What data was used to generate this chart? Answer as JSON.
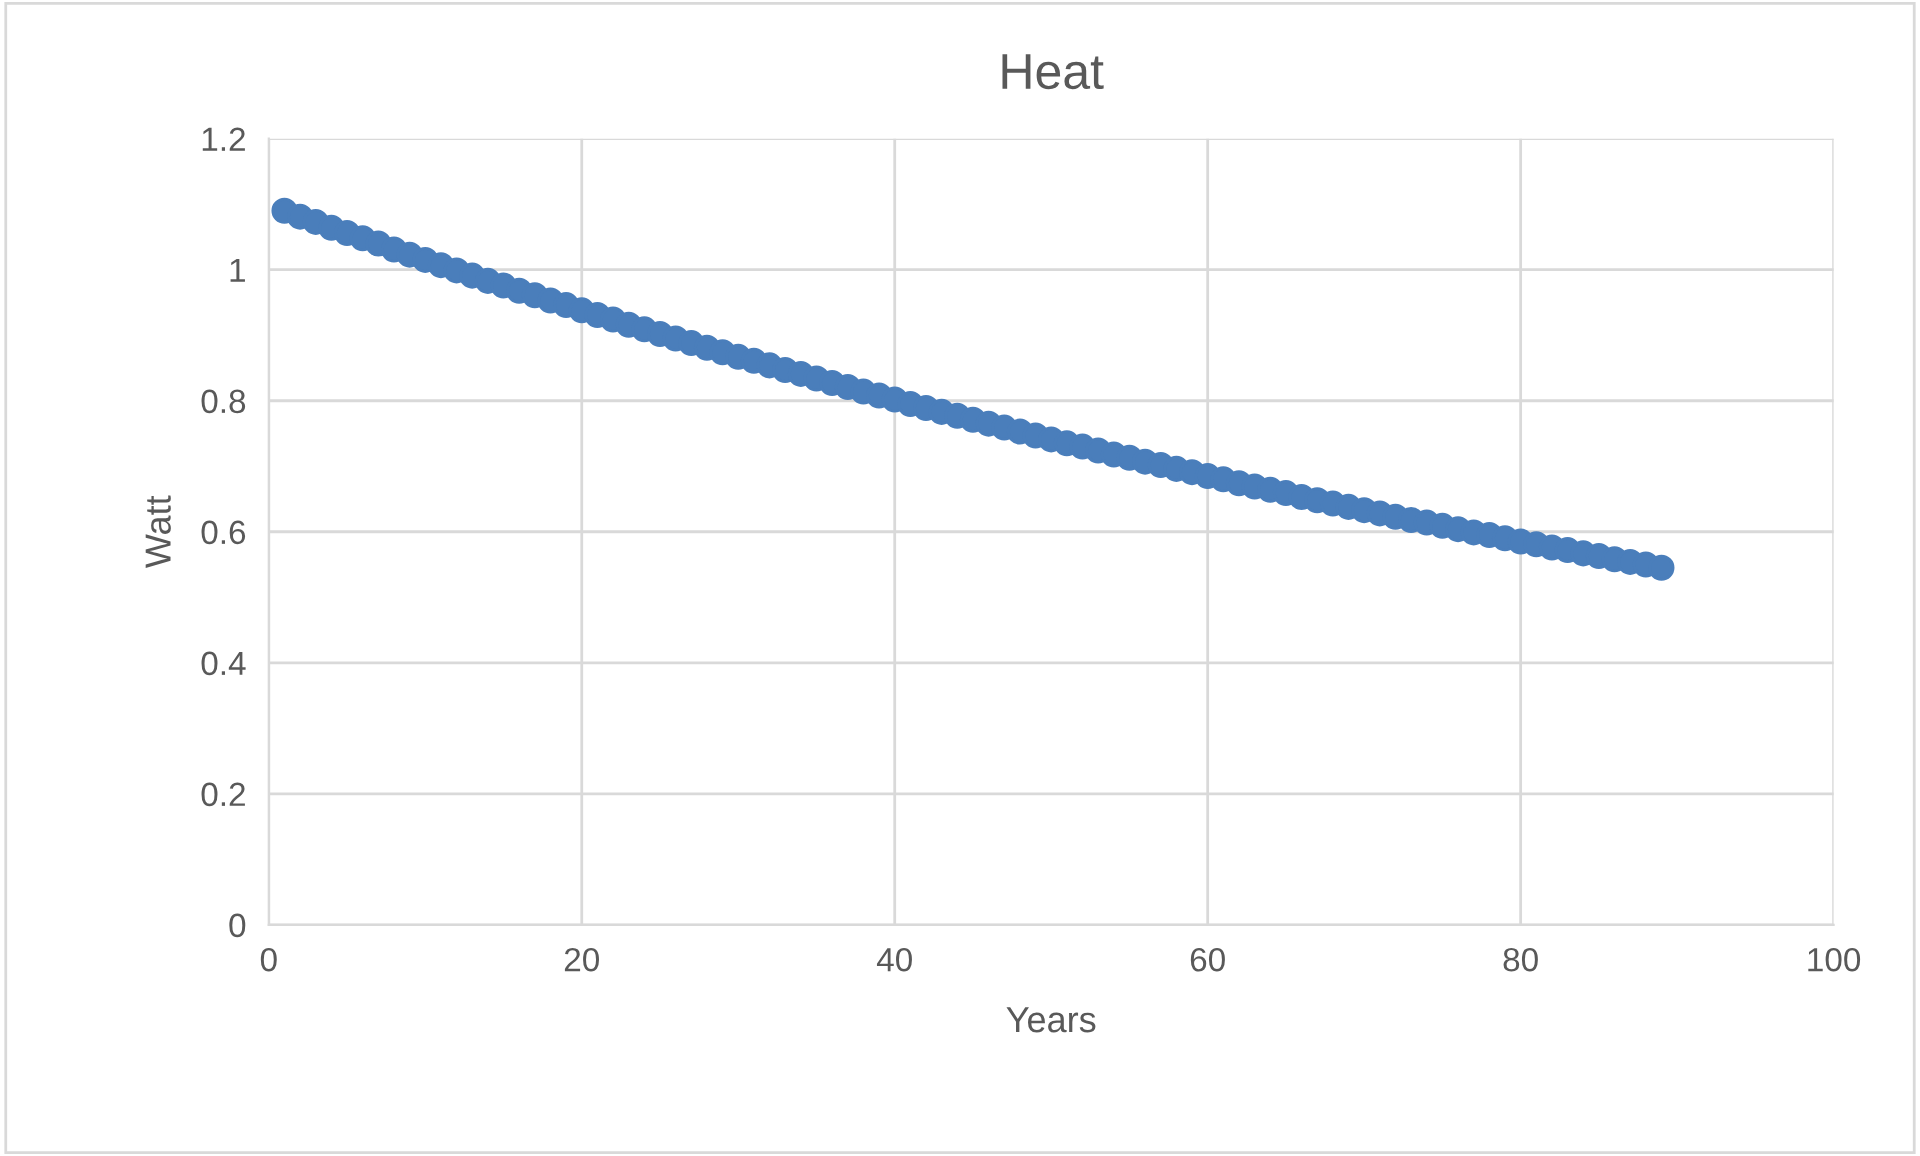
{
  "chart_data": {
    "type": "scatter",
    "title": "Heat",
    "xlabel": "Years",
    "ylabel": "Watt",
    "x": [
      1,
      2,
      3,
      4,
      5,
      6,
      7,
      8,
      9,
      10,
      11,
      12,
      13,
      14,
      15,
      16,
      17,
      18,
      19,
      20,
      21,
      22,
      23,
      24,
      25,
      26,
      27,
      28,
      29,
      30,
      31,
      32,
      33,
      34,
      35,
      36,
      37,
      38,
      39,
      40,
      41,
      42,
      43,
      44,
      45,
      46,
      47,
      48,
      49,
      50,
      51,
      52,
      53,
      54,
      55,
      56,
      57,
      58,
      59,
      60,
      61,
      62,
      63,
      64,
      65,
      66,
      67,
      68,
      69,
      70,
      71,
      72,
      73,
      74,
      75,
      76,
      77,
      78,
      79,
      80,
      81,
      82,
      83,
      84,
      85,
      86,
      87,
      88,
      89
    ],
    "series": [
      {
        "color": "#4a7ebb",
        "values": [
          1.09,
          1.081,
          1.073,
          1.064,
          1.056,
          1.048,
          1.04,
          1.031,
          1.023,
          1.015,
          1.007,
          0.999,
          0.991,
          0.983,
          0.976,
          0.968,
          0.961,
          0.953,
          0.946,
          0.938,
          0.931,
          0.924,
          0.916,
          0.909,
          0.902,
          0.895,
          0.888,
          0.881,
          0.874,
          0.867,
          0.861,
          0.854,
          0.847,
          0.841,
          0.834,
          0.827,
          0.821,
          0.814,
          0.808,
          0.802,
          0.795,
          0.789,
          0.783,
          0.777,
          0.771,
          0.765,
          0.759,
          0.753,
          0.747,
          0.741,
          0.735,
          0.73,
          0.724,
          0.718,
          0.713,
          0.707,
          0.702,
          0.696,
          0.691,
          0.685,
          0.68,
          0.674,
          0.669,
          0.664,
          0.659,
          0.653,
          0.648,
          0.643,
          0.638,
          0.633,
          0.628,
          0.623,
          0.618,
          0.614,
          0.609,
          0.604,
          0.599,
          0.595,
          0.59,
          0.585,
          0.581,
          0.576,
          0.572,
          0.567,
          0.563,
          0.558,
          0.554,
          0.55,
          0.545
        ]
      }
    ],
    "xlim": [
      0,
      100
    ],
    "xticks": [
      0,
      20,
      40,
      60,
      80,
      100
    ],
    "ylim": [
      0,
      1.2
    ],
    "yticks": [
      0,
      0.2,
      0.4,
      0.6,
      0.8,
      1,
      1.2
    ],
    "grid": true,
    "marker": "circle",
    "legend": false
  }
}
